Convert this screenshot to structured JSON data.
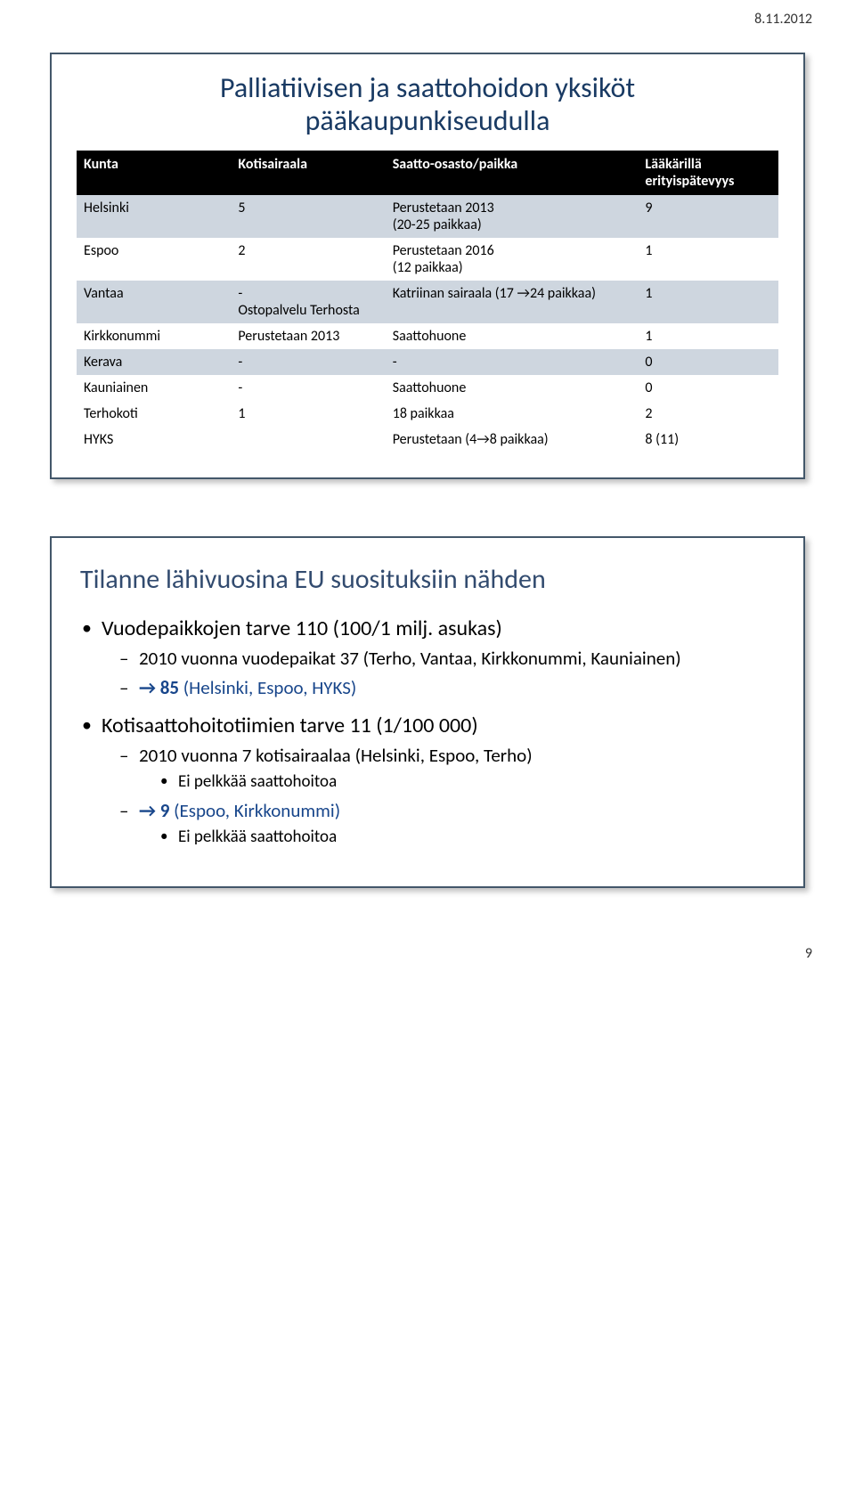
{
  "header_date": "8.11.2012",
  "panel1": {
    "title_line1": "Palliatiivisen ja saattohoidon yksiköt",
    "title_line2": "pääkaupunkiseudulla",
    "columns": [
      "Kunta",
      "Kotisairaala",
      "Saatto-osasto/paikka",
      "Lääkärillä erityispätevyys"
    ],
    "rows": [
      {
        "band": true,
        "cells": [
          "Helsinki",
          "5",
          "Perustetaan 2013\n(20-25 paikkaa)",
          "9"
        ]
      },
      {
        "band": false,
        "cells": [
          "Espoo",
          "2",
          "Perustetaan 2016\n(12 paikkaa)",
          "1"
        ]
      },
      {
        "band": true,
        "cells": [
          "Vantaa",
          "-\nOstopalvelu Terhosta",
          "Katriinan sairaala (17 →24 paikkaa)",
          "1"
        ]
      },
      {
        "band": false,
        "cells": [
          "Kirkkonummi",
          "Perustetaan 2013",
          "Saattohuone",
          "1"
        ]
      },
      {
        "band": true,
        "cells": [
          "Kerava",
          "-",
          "-",
          "0"
        ]
      },
      {
        "band": false,
        "cells": [
          "Kauniainen",
          "-",
          "Saattohuone",
          "0"
        ]
      },
      {
        "band": false,
        "cells": [
          "Terhokoti",
          "1",
          "18 paikkaa",
          "2"
        ]
      },
      {
        "band": false,
        "cells": [
          "HYKS",
          "",
          "Perustetaan (4→8 paikkaa)",
          "8 (11)"
        ]
      }
    ]
  },
  "panel2": {
    "title": "Tilanne lähivuosina EU suosituksiin nähden",
    "b1_text": "Vuodepaikkojen tarve 110 (100/1 milj. asukas)",
    "b1_sub1": "2010 vuonna vuodepaikat 37  (Terho, Vantaa, Kirkkonummi, Kauniainen)",
    "b1_sub2_arrow": "→",
    "b1_sub2_num": "85",
    "b1_sub2_rest": " (Helsinki, Espoo, HYKS)",
    "b2_text": "Kotisaattohoitotiimien tarve 11 (1/100 000)",
    "b2_sub1": "2010 vuonna 7 kotisairaalaa (Helsinki, Espoo, Terho)",
    "b2_sub1_detail": "Ei pelkkää saattohoitoa",
    "b2_sub2_arrow": "→",
    "b2_sub2_num": "9",
    "b2_sub2_rest": " (Espoo, Kirkkonummi)",
    "b2_sub2_detail": "Ei pelkkää saattohoitoa"
  },
  "footer_page": "9",
  "colors": {
    "panel_border": "#43576a",
    "band_bg": "#ced6df",
    "title1_color": "#193a63",
    "title2_color": "#324b6f",
    "accent_blue": "#18468b"
  }
}
